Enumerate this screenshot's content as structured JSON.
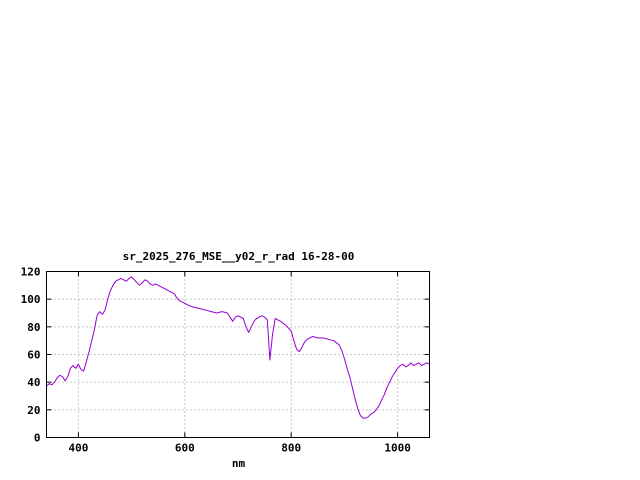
{
  "chart_data": {
    "type": "line",
    "title": "sr_2025_276_MSE__y02_r_rad 16-28-00",
    "xlabel": "nm",
    "ylabel": "",
    "xlim": [
      340,
      1060
    ],
    "ylim": [
      0,
      120
    ],
    "x_ticks": [
      400,
      600,
      800,
      1000
    ],
    "y_ticks": [
      0,
      20,
      40,
      60,
      80,
      100,
      120
    ],
    "grid": true,
    "legend_position": "none",
    "line_color": "#9400d3",
    "background_color": "#ffffff",
    "x": [
      340,
      345,
      350,
      355,
      360,
      365,
      370,
      375,
      380,
      385,
      390,
      395,
      400,
      405,
      410,
      415,
      420,
      425,
      430,
      435,
      440,
      445,
      450,
      455,
      460,
      465,
      470,
      475,
      480,
      485,
      490,
      495,
      500,
      505,
      510,
      515,
      520,
      525,
      530,
      535,
      540,
      545,
      550,
      555,
      560,
      565,
      570,
      575,
      580,
      585,
      590,
      595,
      600,
      610,
      620,
      630,
      640,
      650,
      660,
      670,
      680,
      685,
      690,
      695,
      700,
      710,
      715,
      720,
      725,
      730,
      735,
      740,
      745,
      750,
      755,
      760,
      765,
      770,
      775,
      780,
      790,
      800,
      805,
      810,
      815,
      820,
      825,
      830,
      835,
      840,
      850,
      860,
      870,
      880,
      890,
      895,
      900,
      905,
      910,
      915,
      920,
      925,
      930,
      935,
      940,
      945,
      950,
      955,
      960,
      965,
      970,
      975,
      980,
      985,
      990,
      995,
      1000,
      1005,
      1010,
      1015,
      1020,
      1025,
      1030,
      1035,
      1040,
      1045,
      1050,
      1055,
      1060
    ],
    "values": [
      37,
      39,
      38,
      40,
      43,
      45,
      44,
      41,
      44,
      50,
      52,
      50,
      53,
      49,
      48,
      55,
      62,
      70,
      78,
      88,
      91,
      89,
      92,
      100,
      106,
      110,
      113,
      114,
      115,
      114,
      113,
      115,
      116,
      114,
      112,
      110,
      112,
      114,
      113,
      111,
      110,
      111,
      110,
      109,
      108,
      107,
      106,
      105,
      104,
      101,
      99,
      98,
      97,
      95,
      94,
      93,
      92,
      91,
      90,
      91,
      90,
      87,
      84,
      87,
      88,
      86,
      80,
      76,
      80,
      84,
      86,
      87,
      88,
      87,
      85,
      56,
      75,
      86,
      85,
      84,
      81,
      77,
      70,
      64,
      62,
      65,
      69,
      71,
      72,
      73,
      72,
      72,
      71,
      70,
      67,
      63,
      57,
      50,
      44,
      36,
      28,
      21,
      16,
      14,
      14,
      15,
      17,
      18,
      20,
      23,
      27,
      31,
      36,
      40,
      44,
      47,
      50,
      52,
      53,
      51,
      52,
      54,
      52,
      53,
      54,
      52,
      53,
      54,
      53
    ]
  }
}
